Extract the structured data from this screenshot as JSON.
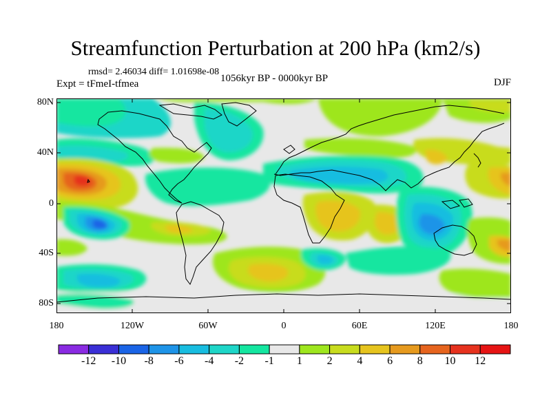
{
  "title": "Streamfunction Perturbation at 200 hPa (km2/s)",
  "stats": "rmsd= 2.46034 diff= 1.01698e-08",
  "experiment": "Expt = tFmeI-tfmea",
  "period": "1056kyr BP - 0000kyr BP",
  "season": "DJF",
  "lat_labels": [
    "80N",
    "40N",
    "0",
    "40S",
    "80S"
  ],
  "lon_labels": [
    "180",
    "120W",
    "60W",
    "0",
    "60E",
    "120E",
    "180"
  ],
  "colorbar": {
    "labels": [
      "-12",
      "-10",
      "-8",
      "-6",
      "-4",
      "-2",
      "-1",
      "1",
      "2",
      "4",
      "6",
      "8",
      "10",
      "12"
    ],
    "colors": [
      "#8a2be2",
      "#3a2fd6",
      "#1a64e6",
      "#1e94e8",
      "#18bde0",
      "#1ed6c8",
      "#14e6a0",
      "#e8e8e8",
      "#9ee61e",
      "#c8dc1e",
      "#e6c41e",
      "#e69a1e",
      "#e6641e",
      "#e6321e",
      "#e61414"
    ]
  },
  "colors": {
    "background_field": "#e8e8e8",
    "coastline": "#000000"
  }
}
